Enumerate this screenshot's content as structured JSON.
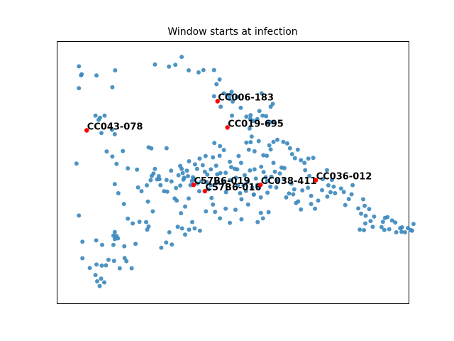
{
  "chart_data": {
    "type": "scatter",
    "title": "Window starts at infection",
    "xlabel": "",
    "ylabel": "",
    "xlim": [
      0,
      100
    ],
    "ylim": [
      0,
      100
    ],
    "axes_visible": false,
    "grid": false,
    "colors": {
      "points": "#3a87bd",
      "highlight": "#ff0000",
      "frame": "#000000"
    },
    "points": [
      [
        6.3,
        90.4
      ],
      [
        7.1,
        87.4
      ],
      [
        6.9,
        87.0
      ],
      [
        6.3,
        82.1
      ],
      [
        11.3,
        86.9
      ],
      [
        16.6,
        88.9
      ],
      [
        15.8,
        82.4
      ],
      [
        27.9,
        91.1
      ],
      [
        31.9,
        90.3
      ],
      [
        33.7,
        91.0
      ],
      [
        35.5,
        94.0
      ],
      [
        37.5,
        88.9
      ],
      [
        40.3,
        88.1
      ],
      [
        41.7,
        89.0
      ],
      [
        44.7,
        89.0
      ],
      [
        44.7,
        79.0
      ],
      [
        45.4,
        83.6
      ],
      [
        46.3,
        85.4
      ],
      [
        47.5,
        80.1
      ],
      [
        46.6,
        75.0
      ],
      [
        48.5,
        79.5
      ],
      [
        49.3,
        79.5
      ],
      [
        49.7,
        80.7
      ],
      [
        49.1,
        78.1
      ],
      [
        50.0,
        77.0
      ],
      [
        51.2,
        78.7
      ],
      [
        52.3,
        74.6
      ],
      [
        53.9,
        71.2
      ],
      [
        55.1,
        71.8
      ],
      [
        57.6,
        73.4
      ],
      [
        58.5,
        71.6
      ],
      [
        59.5,
        71.4
      ],
      [
        61.5,
        69.1
      ],
      [
        60.2,
        68.7
      ],
      [
        60.6,
        69.2
      ],
      [
        57.0,
        70.3
      ],
      [
        55.9,
        69.6
      ],
      [
        55.0,
        70.4
      ],
      [
        54.8,
        66.7
      ],
      [
        44.8,
        61.2
      ],
      [
        55.4,
        63.6
      ],
      [
        55.1,
        61.5
      ],
      [
        49.8,
        71.6
      ],
      [
        11.0,
        71.6
      ],
      [
        12.3,
        70.8
      ],
      [
        11.9,
        70.0
      ],
      [
        13.6,
        71.6
      ],
      [
        15.7,
        66.2
      ],
      [
        12.7,
        65.0
      ],
      [
        16.5,
        64.5
      ],
      [
        14.2,
        57.9
      ],
      [
        15.8,
        56.0
      ],
      [
        18.8,
        58.1
      ],
      [
        17.0,
        53.2
      ],
      [
        5.6,
        53.3
      ],
      [
        22.8,
        51.0
      ],
      [
        26.1,
        59.5
      ],
      [
        26.9,
        59.1
      ],
      [
        31.2,
        59.2
      ],
      [
        27.5,
        49.5
      ],
      [
        27.0,
        48.6
      ],
      [
        28.5,
        47.3
      ],
      [
        29.0,
        48.5
      ],
      [
        29.2,
        47.4
      ],
      [
        30.5,
        42.8
      ],
      [
        31.4,
        42.6
      ],
      [
        32.6,
        46.5
      ],
      [
        33.5,
        40.0
      ],
      [
        34.1,
        39.2
      ],
      [
        35.1,
        44.9
      ],
      [
        35.5,
        51.3
      ],
      [
        35.1,
        52.4
      ],
      [
        35.8,
        49.7
      ],
      [
        36.2,
        47.9
      ],
      [
        37.3,
        48.5
      ],
      [
        38.4,
        46.7
      ],
      [
        38.0,
        45.1
      ],
      [
        38.9,
        47.5
      ],
      [
        39.9,
        51.3
      ],
      [
        40.0,
        45.7
      ],
      [
        40.5,
        42.8
      ],
      [
        41.1,
        46.5
      ],
      [
        42.1,
        50.2
      ],
      [
        42.6,
        46.3
      ],
      [
        42.8,
        49.1
      ],
      [
        43.1,
        43.5
      ],
      [
        43.8,
        45.1
      ],
      [
        44.4,
        55.7
      ],
      [
        45.3,
        52.5
      ],
      [
        45.6,
        49.2
      ],
      [
        45.5,
        45.9
      ],
      [
        46.5,
        49.7
      ],
      [
        47.5,
        46.5
      ],
      [
        48.0,
        49.8
      ],
      [
        48.1,
        42.4
      ],
      [
        49.2,
        47.0
      ],
      [
        49.2,
        54.0
      ],
      [
        49.6,
        52.0
      ],
      [
        50.6,
        51.3
      ],
      [
        50.9,
        47.9
      ],
      [
        51.5,
        45.0
      ],
      [
        52.1,
        42.0
      ],
      [
        52.5,
        39.7
      ],
      [
        53.1,
        45.1
      ],
      [
        53.4,
        48.9
      ],
      [
        53.8,
        42.9
      ],
      [
        54.3,
        46.4
      ],
      [
        54.9,
        50.7
      ],
      [
        55.5,
        44.2
      ],
      [
        56.0,
        41.5
      ],
      [
        56.2,
        51.1
      ],
      [
        56.6,
        47.6
      ],
      [
        57.0,
        45.2
      ],
      [
        57.3,
        43.9
      ],
      [
        58.0,
        40.4
      ],
      [
        58.1,
        52.1
      ],
      [
        58.8,
        50.1
      ],
      [
        59.4,
        48.1
      ],
      [
        59.8,
        46.6
      ],
      [
        59.9,
        42.2
      ],
      [
        60.7,
        44.5
      ],
      [
        61.0,
        48.3
      ],
      [
        61.6,
        53.6
      ],
      [
        62.0,
        50.2
      ],
      [
        62.4,
        44.2
      ],
      [
        62.9,
        46.8
      ],
      [
        63.4,
        49.5
      ],
      [
        63.9,
        51.8
      ],
      [
        64.6,
        47.4
      ],
      [
        65.2,
        40.4
      ],
      [
        66.0,
        41.9
      ],
      [
        66.7,
        45.7
      ],
      [
        67.2,
        41.6
      ],
      [
        67.5,
        43.5
      ],
      [
        68.0,
        38.3
      ],
      [
        68.6,
        38.9
      ],
      [
        69.4,
        35.8
      ],
      [
        69.8,
        43.1
      ],
      [
        70.6,
        50.8
      ],
      [
        71.8,
        48.6
      ],
      [
        71.4,
        44.1
      ],
      [
        72.3,
        41.0
      ],
      [
        72.3,
        37.9
      ],
      [
        73.4,
        36.1
      ],
      [
        74.3,
        39.2
      ],
      [
        75.4,
        43.2
      ],
      [
        75.6,
        47.4
      ],
      [
        76.8,
        50.8
      ],
      [
        77.2,
        45.0
      ],
      [
        78.2,
        47.1
      ],
      [
        78.7,
        44.5
      ],
      [
        79.1,
        42.0
      ],
      [
        80.8,
        43.8
      ],
      [
        81.6,
        42.5
      ],
      [
        82.0,
        37.5
      ],
      [
        83.0,
        39.8
      ],
      [
        83.8,
        41.6
      ],
      [
        84.1,
        45.1
      ],
      [
        85.7,
        36.2
      ],
      [
        87.1,
        39.7
      ],
      [
        87.5,
        37.2
      ],
      [
        88.8,
        36.0
      ],
      [
        77.8,
        42.4
      ],
      [
        76.9,
        40.7
      ],
      [
        72.9,
        55.5
      ],
      [
        71.5,
        55.2
      ],
      [
        64.7,
        51.6
      ],
      [
        60.8,
        58.7
      ],
      [
        59.7,
        56.3
      ],
      [
        60.4,
        60.3
      ],
      [
        61.6,
        61.6
      ],
      [
        62.7,
        62.4
      ],
      [
        64.4,
        61.6
      ],
      [
        65.5,
        61.0
      ],
      [
        66.3,
        59.2
      ],
      [
        66.9,
        56.9
      ],
      [
        67.7,
        55.4
      ],
      [
        68.5,
        58.6
      ],
      [
        69.4,
        54.6
      ],
      [
        70.4,
        53.6
      ],
      [
        58.7,
        56.5
      ],
      [
        57.4,
        61.9
      ],
      [
        56.2,
        58.0
      ],
      [
        54.6,
        58.6
      ],
      [
        53.9,
        61.3
      ],
      [
        52.4,
        53.6
      ],
      [
        51.7,
        56.2
      ],
      [
        51.3,
        51.1
      ],
      [
        46.4,
        60.0
      ],
      [
        47.5,
        58.5
      ],
      [
        46.3,
        56.3
      ],
      [
        43.8,
        51.1
      ],
      [
        42.3,
        56.2
      ],
      [
        41.5,
        52.7
      ],
      [
        40.6,
        55.2
      ],
      [
        39.3,
        53.0
      ],
      [
        38.7,
        48.1
      ],
      [
        37.6,
        54.2
      ],
      [
        37.0,
        50.6
      ],
      [
        36.0,
        47.2
      ],
      [
        34.6,
        48.9
      ],
      [
        33.9,
        44.0
      ],
      [
        32.5,
        50.6
      ],
      [
        31.2,
        47.1
      ],
      [
        29.5,
        45.1
      ],
      [
        27.9,
        51.3
      ],
      [
        26.7,
        47.0
      ],
      [
        25.6,
        45.0
      ],
      [
        24.1,
        42.8
      ],
      [
        23.1,
        44.2
      ],
      [
        20.2,
        51.5
      ],
      [
        19.1,
        37.9
      ],
      [
        17.5,
        42.0
      ],
      [
        16.5,
        45.5
      ],
      [
        20.2,
        32.3
      ],
      [
        21.6,
        30.5
      ],
      [
        25.7,
        28.1
      ],
      [
        23.5,
        31.1
      ],
      [
        19.2,
        21.8
      ],
      [
        17.4,
        24.8
      ],
      [
        16.3,
        16.2
      ],
      [
        14.7,
        16.6
      ],
      [
        14.0,
        14.5
      ],
      [
        12.8,
        14.4
      ],
      [
        12.6,
        9.4
      ],
      [
        13.5,
        8.0
      ],
      [
        12.2,
        6.6
      ],
      [
        11.5,
        8.4
      ],
      [
        11.0,
        10.8
      ],
      [
        11.3,
        14.8
      ],
      [
        9.4,
        13.5
      ],
      [
        7.3,
        17.2
      ],
      [
        6.3,
        33.5
      ],
      [
        7.3,
        23.5
      ],
      [
        11.2,
        24.0
      ],
      [
        12.9,
        22.3
      ],
      [
        16.1,
        22.3
      ],
      [
        16.1,
        25.8
      ],
      [
        16.5,
        27.2
      ],
      [
        17.0,
        25.7
      ],
      [
        16.5,
        24.5
      ],
      [
        19.8,
        16.1
      ],
      [
        19.3,
        17.3
      ],
      [
        17.9,
        13.4
      ],
      [
        21.3,
        13.4
      ],
      [
        22.4,
        22.7
      ],
      [
        29.7,
        21.2
      ],
      [
        31.1,
        23.2
      ],
      [
        32.7,
        22.4
      ],
      [
        32.0,
        27.1
      ],
      [
        34.4,
        29.2
      ],
      [
        35.6,
        28.6
      ],
      [
        36.5,
        26.2
      ],
      [
        37.6,
        28.1
      ],
      [
        38.5,
        31.0
      ],
      [
        39.2,
        28.6
      ],
      [
        40.7,
        27.7
      ],
      [
        42.4,
        35.1
      ],
      [
        44.4,
        37.7
      ],
      [
        45.0,
        34.9
      ],
      [
        46.4,
        32.4
      ],
      [
        48.0,
        36.1
      ],
      [
        49.2,
        30.7
      ],
      [
        50.8,
        35.7
      ],
      [
        52.5,
        32.1
      ],
      [
        54.4,
        37.7
      ],
      [
        56.0,
        41.5
      ],
      [
        57.1,
        31.0
      ],
      [
        58.0,
        34.5
      ],
      [
        58.6,
        32.4
      ],
      [
        60.2,
        34.8
      ],
      [
        37.5,
        40.0
      ],
      [
        36.5,
        36.9
      ],
      [
        35.3,
        34.4
      ],
      [
        44.0,
        40.2
      ],
      [
        25.9,
        38.8
      ],
      [
        27.3,
        35.1
      ],
      [
        25.4,
        31.0
      ],
      [
        26.1,
        29.3
      ],
      [
        86.5,
        34.2
      ],
      [
        87.8,
        33.4
      ],
      [
        89.2,
        31.4
      ],
      [
        90.2,
        33.1
      ],
      [
        89.8,
        29.2
      ],
      [
        86.1,
        28.1
      ],
      [
        87.3,
        27.9
      ],
      [
        87.7,
        30.5
      ],
      [
        92.7,
        31.1
      ],
      [
        93.3,
        32.6
      ],
      [
        94.0,
        32.9
      ],
      [
        95.3,
        31.6
      ],
      [
        96.2,
        30.8
      ],
      [
        97.6,
        28.7
      ],
      [
        98.1,
        29.0
      ],
      [
        99.0,
        27.1
      ],
      [
        100.6,
        28.0
      ],
      [
        101.0,
        27.7
      ],
      [
        101.4,
        30.3
      ],
      [
        99.8,
        28.7
      ],
      [
        98.0,
        27.3
      ],
      [
        96.5,
        27.1
      ],
      [
        94.5,
        28.3
      ],
      [
        92.3,
        29.1
      ],
      [
        93.1,
        28.0
      ],
      [
        60.8,
        75.0
      ],
      [
        61.4,
        76.1
      ],
      [
        58.2,
        80.1
      ]
    ],
    "highlighted": [
      {
        "label": "CC006-183",
        "x": 45.7,
        "y": 77.1
      },
      {
        "label": "CC019-695",
        "x": 48.5,
        "y": 67.1
      },
      {
        "label": "CC043-078",
        "x": 8.5,
        "y": 66.0
      },
      {
        "label": "C57B6-019",
        "x": 38.9,
        "y": 45.2
      },
      {
        "label": "C57B6-016",
        "x": 42.1,
        "y": 42.8
      },
      {
        "label": "CC038-411",
        "x": 57.9,
        "y": 45.2
      },
      {
        "label": "CC036-012",
        "x": 73.6,
        "y": 47.0
      }
    ]
  }
}
